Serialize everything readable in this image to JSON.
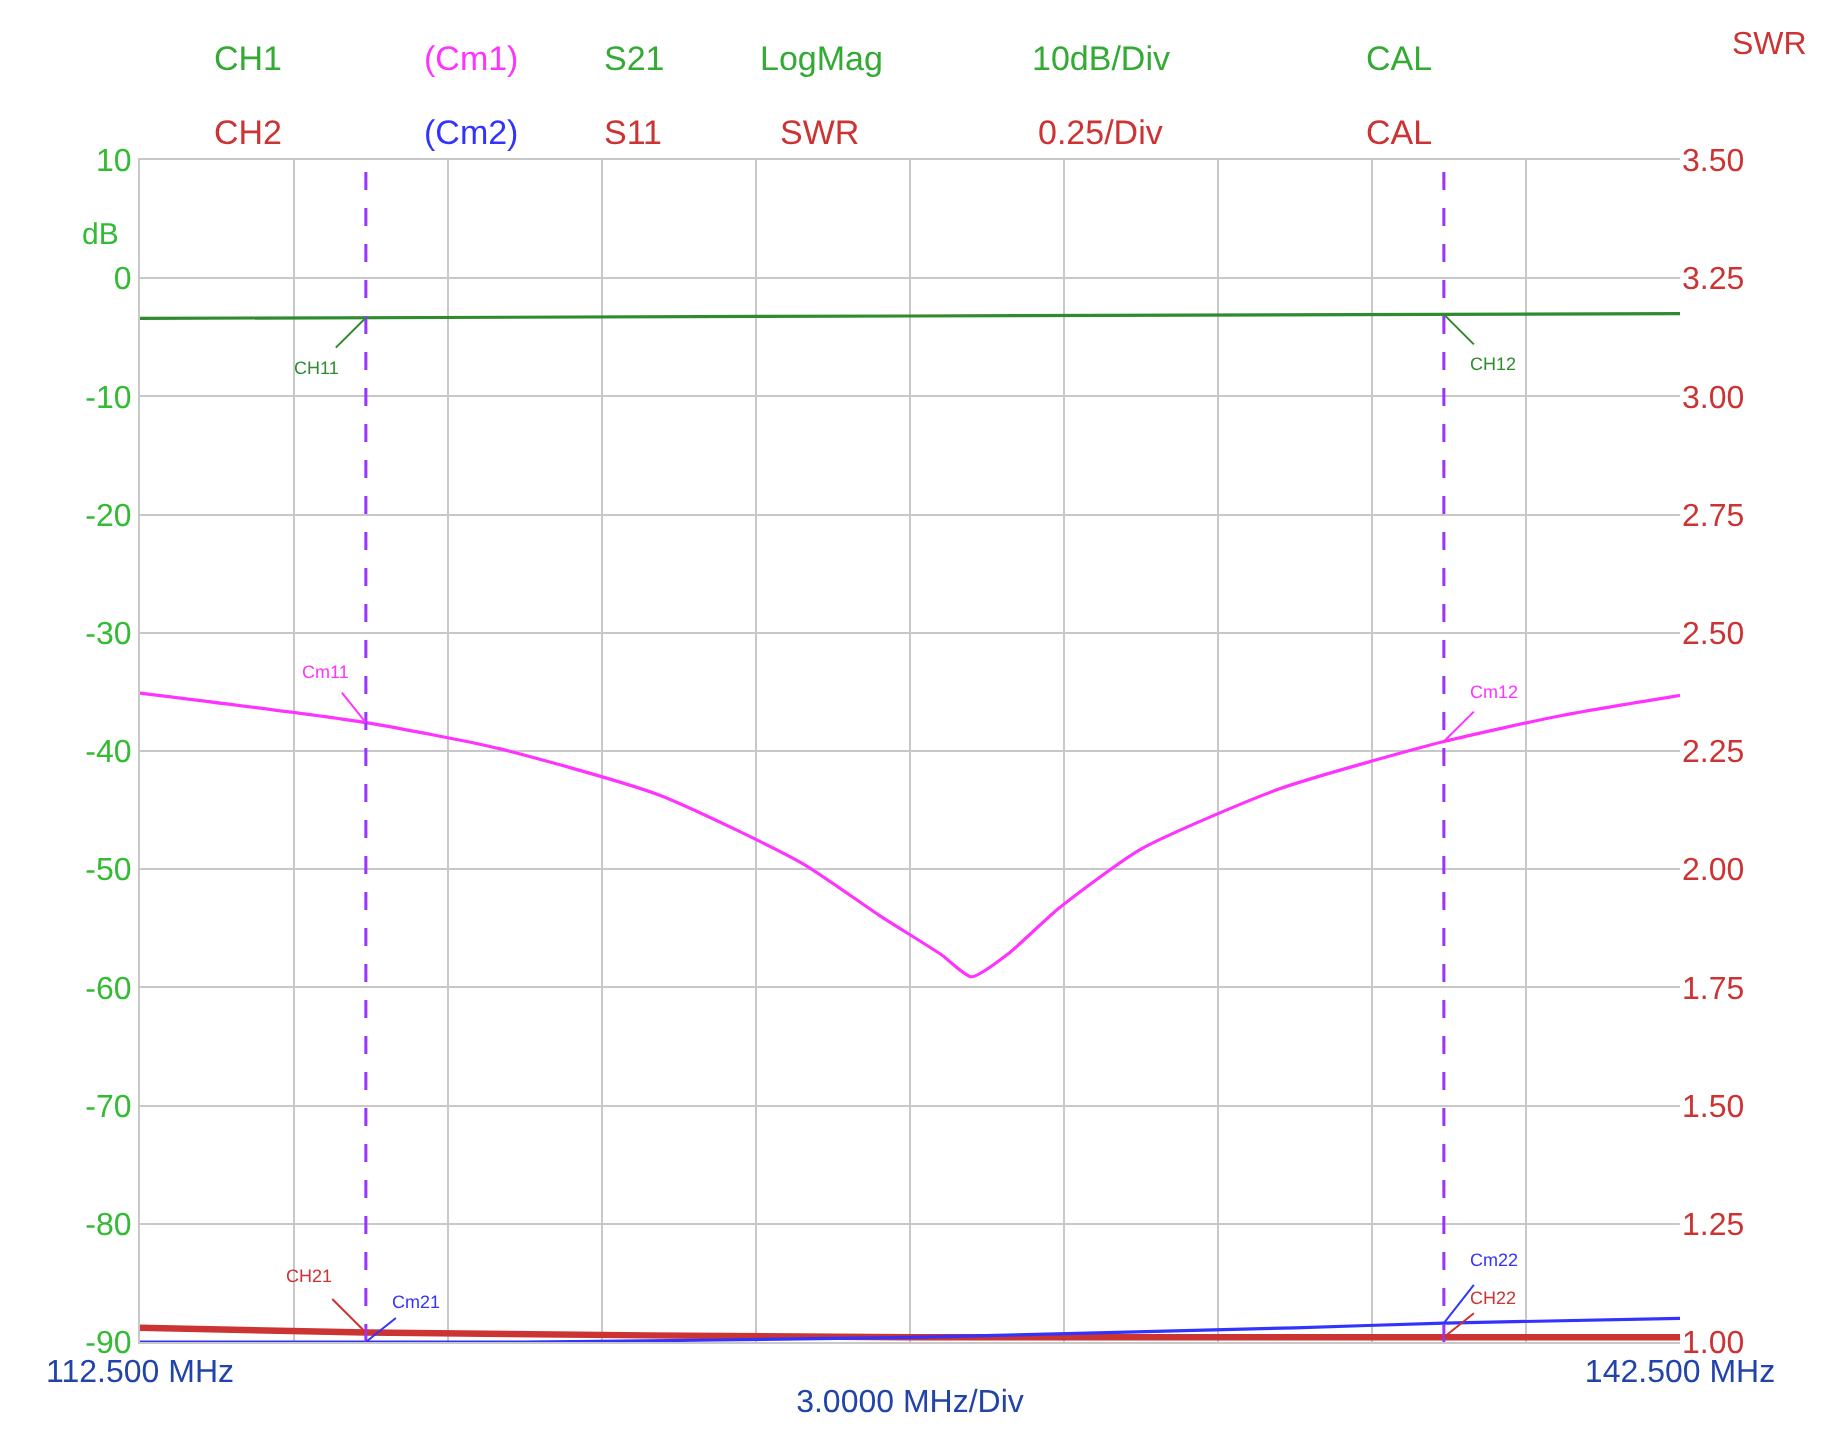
{
  "chart_data": {
    "type": "line",
    "xlabel": "3.0000 MHz/Div",
    "ylabel": "dB",
    "y2label": "SWR",
    "annotations": [
      "CH1",
      "(Cm1)",
      "S21",
      "LogMag",
      "10dB/Div",
      "CAL",
      "CH2",
      "(Cm2)",
      "S11",
      "SWR",
      "0.25/Div",
      "CAL",
      "CH11",
      "Cm11",
      "CH12",
      "Cm12",
      "CH21",
      "Cm21",
      "Cm22",
      "CH22"
    ],
    "series": [
      {
        "color": "#2e8b2e",
        "x": [
          112.5,
          127.5,
          142.5
        ],
        "values": [
          -3.4,
          -3.2,
          -3.0
        ]
      },
      {
        "color": "#ff33ff",
        "x": [
          112.5,
          116.9,
          119.5,
          122.6,
          125.4,
          126.9,
          128.1,
          128.7,
          129.4,
          130.4,
          132.0,
          134.7,
          137.9,
          140.2,
          142.5
        ],
        "values": [
          -35.1,
          -37.6,
          -39.8,
          -43.7,
          -49.5,
          -53.9,
          -57.2,
          -59.1,
          -57.2,
          -53.3,
          -48.3,
          -43.2,
          -39.2,
          -37.0,
          -35.3
        ]
      },
      {
        "color": "#cc3333",
        "axis": "y2",
        "x": [
          112.5,
          116.9,
          127.5,
          142.5
        ],
        "values": [
          1.03,
          1.02,
          1.01,
          1.01
        ]
      },
      {
        "color": "#3333ff",
        "axis": "y2",
        "x": [
          112.5,
          120.0,
          127.5,
          135.0,
          137.9,
          142.5
        ],
        "values": [
          1.0,
          1.0,
          1.01,
          1.03,
          1.04,
          1.05
        ]
      }
    ],
    "xlim": [
      112.5,
      142.5
    ],
    "xticks": [
      {
        "value": 112.5,
        "label": "112.500 MHz"
      },
      {
        "value": 115.5,
        "label": null
      },
      {
        "value": 118.5,
        "label": null
      },
      {
        "value": 121.5,
        "label": null
      },
      {
        "value": 124.5,
        "label": null
      },
      {
        "value": 127.5,
        "label": null
      },
      {
        "value": 130.5,
        "label": null
      },
      {
        "value": 133.5,
        "label": null
      },
      {
        "value": 136.5,
        "label": null
      },
      {
        "value": 139.5,
        "label": null
      },
      {
        "value": 142.5,
        "label": "142.500 MHz"
      }
    ],
    "ylim": [
      -90,
      10
    ],
    "yticks": [
      -90,
      -80,
      -70,
      -60,
      -50,
      -40,
      -30,
      -20,
      -10,
      0,
      10
    ],
    "y2lim": [
      1.0,
      3.5
    ],
    "y2ticks": [
      {
        "value": 1.0,
        "label": "1.00"
      },
      {
        "value": 1.25,
        "label": "1.25"
      },
      {
        "value": 1.5,
        "label": "1.50"
      },
      {
        "value": 1.75,
        "label": "1.75"
      },
      {
        "value": 2.0,
        "label": "2.00"
      },
      {
        "value": 2.25,
        "label": "2.25"
      },
      {
        "value": 2.5,
        "label": "2.50"
      },
      {
        "value": 2.75,
        "label": "2.75"
      },
      {
        "value": 3.0,
        "label": "3.00"
      },
      {
        "value": 3.25,
        "label": "3.25"
      },
      {
        "value": 3.5,
        "label": "3.50"
      }
    ],
    "ref_lines": [
      {
        "axis": "x",
        "value": 116.9,
        "color": "#9933ff",
        "line_style": "dashed"
      },
      {
        "axis": "x",
        "value": 137.9,
        "color": "#9933ff",
        "line_style": "dashed"
      }
    ],
    "grid": true,
    "marker": "none",
    "line_style": "solid"
  }
}
